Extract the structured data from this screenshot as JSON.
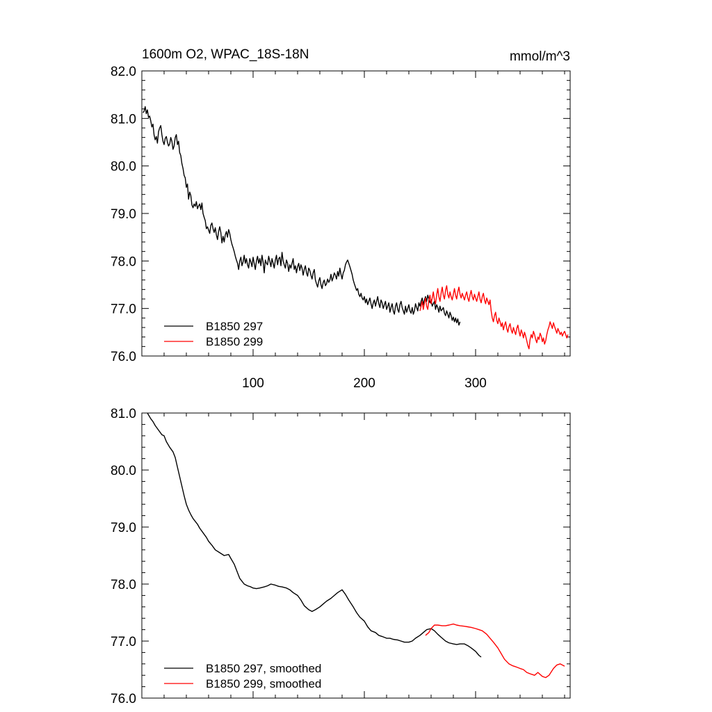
{
  "chart_data": [
    {
      "type": "line",
      "title": "1600m O2, WPAC_18S-18N",
      "units_label": "mmol/m^3",
      "xlabel": "",
      "ylabel": "",
      "xlim": [
        0,
        385
      ],
      "ylim": [
        76.0,
        82.0
      ],
      "x_major_ticks": [
        100,
        200,
        300
      ],
      "x_tick_labels": [
        "100",
        "200",
        "300"
      ],
      "y_major_ticks": [
        76.0,
        77.0,
        78.0,
        79.0,
        80.0,
        81.0,
        82.0
      ],
      "y_tick_labels": [
        "76.0",
        "77.0",
        "78.0",
        "79.0",
        "80.0",
        "81.0",
        "82.0"
      ],
      "legend_position": "bottom-left",
      "series": [
        {
          "name": "B1850 297",
          "color": "#000000",
          "x_start": 1,
          "values": [
            81.12,
            81.15,
            81.25,
            81.1,
            81.18,
            81.02,
            81.05,
            80.95,
            80.82,
            80.88,
            80.65,
            80.55,
            80.62,
            80.48,
            80.72,
            80.8,
            80.85,
            80.66,
            80.52,
            80.45,
            80.58,
            80.62,
            80.5,
            80.42,
            80.46,
            80.6,
            80.52,
            80.35,
            80.42,
            80.6,
            80.66,
            80.45,
            80.52,
            80.28,
            80.22,
            80.05,
            79.95,
            79.8,
            79.75,
            79.55,
            79.62,
            79.3,
            79.45,
            79.38,
            79.18,
            79.12,
            79.2,
            79.15,
            79.25,
            79.1,
            79.16,
            79.2,
            79.08,
            79.22,
            79.0,
            78.92,
            78.85,
            78.68,
            78.72,
            78.65,
            78.58,
            78.75,
            78.8,
            78.68,
            78.6,
            78.7,
            78.55,
            78.45,
            78.62,
            78.72,
            78.6,
            78.38,
            78.52,
            78.4,
            78.55,
            78.62,
            78.5,
            78.66,
            78.58,
            78.45,
            78.35,
            78.28,
            78.2,
            78.1,
            78.02,
            77.95,
            77.82,
            78.0,
            78.08,
            77.9,
            77.98,
            78.12,
            77.95,
            78.05,
            77.92,
            77.85,
            78.05,
            77.98,
            77.88,
            78.08,
            77.95,
            77.82,
            78.0,
            78.1,
            77.95,
            78.05,
            77.9,
            78.12,
            77.98,
            77.75,
            78.02,
            77.95,
            77.92,
            78.1,
            78.0,
            77.88,
            78.05,
            77.95,
            77.85,
            78.02,
            78.12,
            77.92,
            78.05,
            78.08,
            77.9,
            78.18,
            78.0,
            77.92,
            77.85,
            78.02,
            77.95,
            77.78,
            77.92,
            77.85,
            77.95,
            78.05,
            77.82,
            77.9,
            77.75,
            77.88,
            77.95,
            77.8,
            77.92,
            77.85,
            77.7,
            77.82,
            77.9,
            77.75,
            77.68,
            77.85,
            77.8,
            77.7,
            77.62,
            77.75,
            77.82,
            77.6,
            77.52,
            77.45,
            77.58,
            77.65,
            77.5,
            77.42,
            77.55,
            77.6,
            77.48,
            77.52,
            77.62,
            77.55,
            77.6,
            77.72,
            77.58,
            77.65,
            77.75,
            77.7,
            77.62,
            77.78,
            77.68,
            77.85,
            77.72,
            77.62,
            77.75,
            77.8,
            77.92,
            77.98,
            78.02,
            77.95,
            77.88,
            77.8,
            77.72,
            77.6,
            77.52,
            77.45,
            77.38,
            77.42,
            77.3,
            77.25,
            77.32,
            77.22,
            77.18,
            77.25,
            77.12,
            77.2,
            77.08,
            77.15,
            77.22,
            77.1,
            77.0,
            77.12,
            77.18,
            77.05,
            77.15,
            77.25,
            77.1,
            77.02,
            77.18,
            77.12,
            77.0,
            77.08,
            77.15,
            76.98,
            77.05,
            77.12,
            76.92,
            77.02,
            77.1,
            76.95,
            76.88,
            77.05,
            77.12,
            76.98,
            76.92,
            77.08,
            77.15,
            77.02,
            76.95,
            76.88,
            77.05,
            76.92,
            77.0,
            77.08,
            76.95,
            76.9,
            77.02,
            76.88,
            76.95,
            77.1,
            77.02,
            76.95,
            77.12,
            77.05,
            77.15,
            77.22,
            77.08,
            77.18,
            77.25,
            77.15,
            77.28,
            77.2,
            77.12,
            77.18,
            77.05,
            77.1,
            77.15,
            76.98,
            77.08,
            77.02,
            76.92,
            77.05,
            76.95,
            76.98,
            77.02,
            76.9,
            76.85,
            76.95,
            76.88,
            76.8,
            76.92,
            76.85,
            76.75,
            76.82,
            76.72,
            76.8,
            76.7,
            76.78,
            76.65,
            76.72
          ]
        },
        {
          "name": "B1850 299",
          "color": "#ff0000",
          "x_start": 250,
          "values": [
            76.95,
            77.05,
            77.15,
            76.98,
            77.12,
            77.22,
            77.05,
            76.98,
            77.18,
            77.28,
            77.1,
            77.22,
            77.35,
            77.18,
            77.1,
            77.28,
            77.42,
            77.25,
            77.15,
            77.32,
            77.45,
            77.28,
            77.2,
            77.38,
            77.48,
            77.3,
            77.22,
            77.35,
            77.25,
            77.18,
            77.3,
            77.42,
            77.28,
            77.2,
            77.35,
            77.45,
            77.3,
            77.22,
            77.32,
            77.25,
            77.18,
            77.28,
            77.35,
            77.22,
            77.15,
            77.28,
            77.38,
            77.25,
            77.18,
            77.3,
            77.22,
            77.15,
            77.25,
            77.35,
            77.2,
            77.12,
            77.25,
            77.32,
            77.18,
            77.1,
            77.22,
            77.15,
            77.08,
            77.18,
            76.95,
            76.8,
            76.72,
            76.85,
            76.92,
            76.75,
            76.68,
            76.8,
            76.72,
            76.62,
            76.7,
            76.55,
            76.65,
            76.72,
            76.58,
            76.5,
            76.62,
            76.68,
            76.55,
            76.48,
            76.6,
            76.52,
            76.45,
            76.58,
            76.65,
            76.52,
            76.42,
            76.55,
            76.48,
            76.38,
            76.5,
            76.42,
            76.32,
            76.22,
            76.15,
            76.35,
            76.45,
            76.38,
            76.52,
            76.45,
            76.35,
            76.28,
            76.4,
            76.35,
            76.48,
            76.42,
            76.3,
            76.38,
            76.25,
            76.32,
            76.45,
            76.55,
            76.62,
            76.72,
            76.65,
            76.58,
            76.7,
            76.62,
            76.55,
            76.48,
            76.58,
            76.52,
            76.45,
            76.5,
            76.42,
            76.48,
            76.52,
            76.45,
            76.38,
            76.45
          ]
        }
      ]
    },
    {
      "type": "line",
      "title": "",
      "xlabel": "",
      "ylabel": "",
      "xlim": [
        0,
        385
      ],
      "ylim": [
        76.0,
        81.0
      ],
      "x_major_ticks": [
        100,
        200,
        300
      ],
      "y_major_ticks": [
        76.0,
        77.0,
        78.0,
        79.0,
        80.0,
        81.0
      ],
      "y_tick_labels": [
        "76.0",
        "77.0",
        "78.0",
        "79.0",
        "80.0",
        "81.0"
      ],
      "legend_position": "bottom-left",
      "series": [
        {
          "name": "B1850 297, smoothed",
          "color": "#000000",
          "x": [
            5,
            8,
            10,
            12,
            15,
            18,
            20,
            22,
            25,
            28,
            30,
            32,
            35,
            38,
            40,
            42,
            44,
            46,
            48,
            50,
            52,
            55,
            58,
            60,
            63,
            66,
            70,
            74,
            78,
            80,
            83,
            86,
            88,
            90,
            92,
            95,
            98,
            100,
            103,
            106,
            110,
            113,
            116,
            120,
            123,
            126,
            130,
            133,
            136,
            140,
            143,
            146,
            150,
            153,
            156,
            160,
            163,
            166,
            170,
            173,
            176,
            180,
            183,
            186,
            190,
            193,
            196,
            200,
            203,
            206,
            210,
            213,
            216,
            220,
            223,
            226,
            230,
            233,
            236,
            240,
            243,
            246,
            250,
            253,
            256,
            260,
            263,
            266,
            270,
            273,
            276,
            280,
            283,
            286,
            290,
            293,
            296,
            300,
            303,
            305
          ],
          "values": [
            81.0,
            80.9,
            80.85,
            80.78,
            80.7,
            80.62,
            80.6,
            80.5,
            80.4,
            80.32,
            80.22,
            80.05,
            79.8,
            79.55,
            79.4,
            79.3,
            79.22,
            79.15,
            79.1,
            79.05,
            78.98,
            78.9,
            78.82,
            78.75,
            78.68,
            78.6,
            78.55,
            78.5,
            78.52,
            78.45,
            78.35,
            78.2,
            78.1,
            78.05,
            78.0,
            77.97,
            77.95,
            77.93,
            77.92,
            77.93,
            77.95,
            77.97,
            78.0,
            77.98,
            77.96,
            77.95,
            77.93,
            77.9,
            77.85,
            77.8,
            77.72,
            77.62,
            77.55,
            77.52,
            77.55,
            77.6,
            77.65,
            77.7,
            77.75,
            77.8,
            77.85,
            77.9,
            77.82,
            77.72,
            77.6,
            77.5,
            77.42,
            77.35,
            77.25,
            77.18,
            77.15,
            77.1,
            77.08,
            77.05,
            77.05,
            77.03,
            77.02,
            77.0,
            76.98,
            76.98,
            77.0,
            77.05,
            77.1,
            77.15,
            77.2,
            77.22,
            77.18,
            77.12,
            77.05,
            77.0,
            76.97,
            76.95,
            76.94,
            76.95,
            76.95,
            76.92,
            76.88,
            76.82,
            76.75,
            76.72
          ]
        },
        {
          "name": "B1850 299, smoothed",
          "color": "#ff0000",
          "x": [
            255,
            258,
            260,
            263,
            266,
            270,
            273,
            276,
            280,
            283,
            286,
            290,
            293,
            296,
            300,
            303,
            306,
            310,
            313,
            316,
            320,
            323,
            326,
            330,
            333,
            336,
            340,
            343,
            346,
            350,
            353,
            356,
            360,
            363,
            366,
            370,
            373,
            376,
            380
          ],
          "values": [
            77.1,
            77.15,
            77.22,
            77.28,
            77.28,
            77.27,
            77.27,
            77.28,
            77.3,
            77.28,
            77.27,
            77.26,
            77.25,
            77.24,
            77.22,
            77.2,
            77.18,
            77.12,
            77.05,
            76.98,
            76.88,
            76.78,
            76.68,
            76.6,
            76.57,
            76.55,
            76.52,
            76.5,
            76.45,
            76.42,
            76.4,
            76.45,
            76.38,
            76.36,
            76.4,
            76.52,
            76.58,
            76.6,
            76.56
          ]
        }
      ]
    }
  ]
}
